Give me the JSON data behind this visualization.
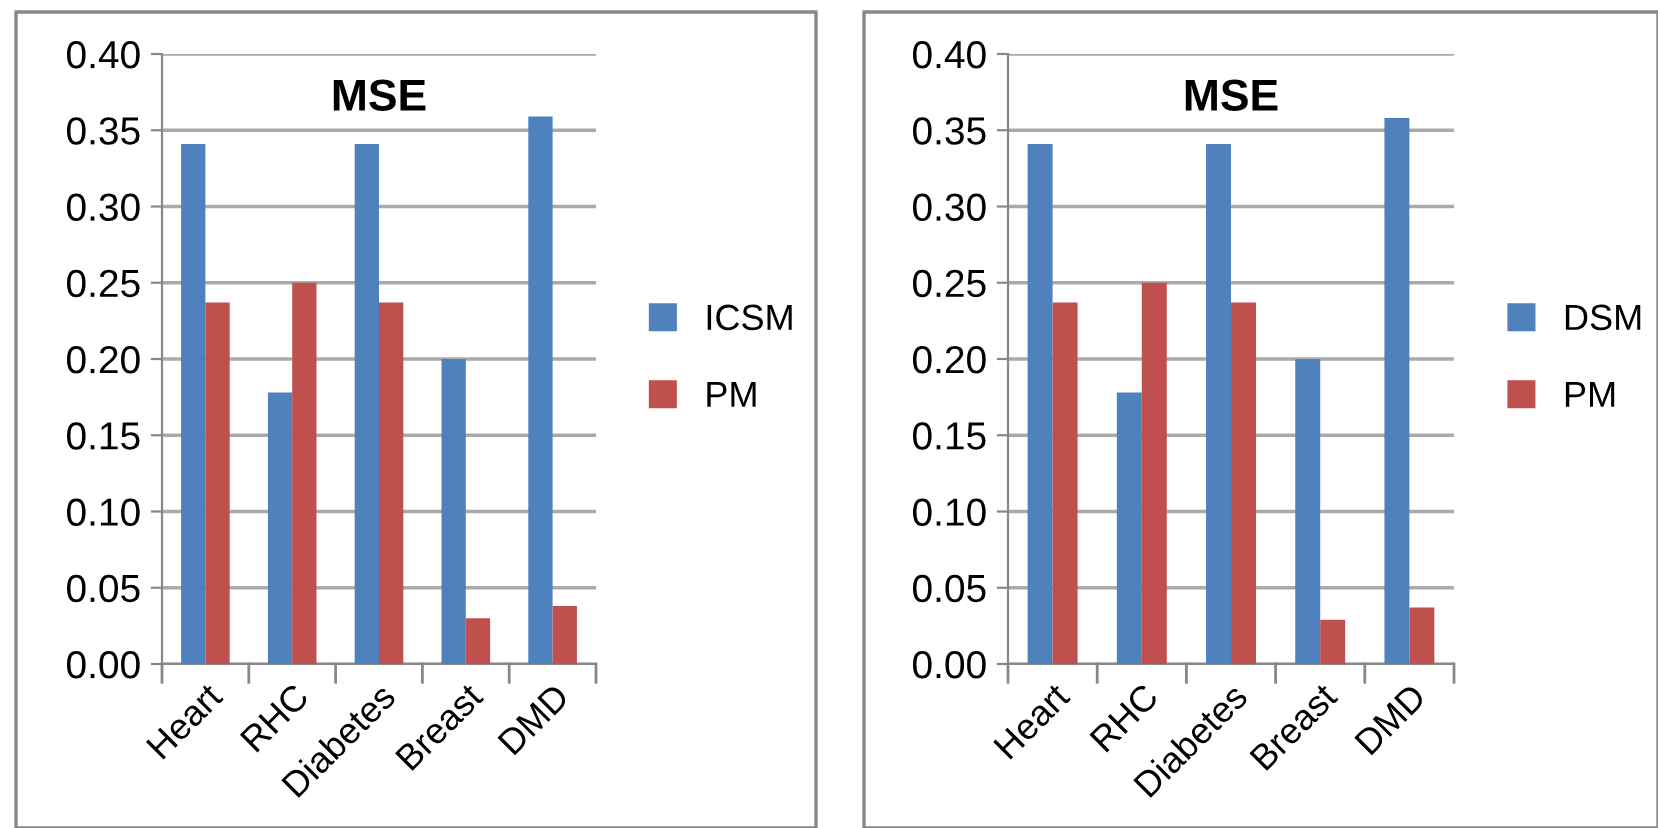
{
  "chart_data": [
    {
      "type": "bar",
      "title": "MSE",
      "categories": [
        "Heart",
        "RHC",
        "Diabetes",
        "Breast",
        "DMD"
      ],
      "series": [
        {
          "name": "ICSM",
          "color": "#4f81bd",
          "values": [
            0.341,
            0.178,
            0.341,
            0.2,
            0.359
          ]
        },
        {
          "name": "PM",
          "color": "#c0504d",
          "values": [
            0.237,
            0.25,
            0.237,
            0.03,
            0.038
          ]
        }
      ],
      "ylim": [
        0,
        0.4
      ],
      "yticks": [
        {
          "value": 0,
          "label": "0.00"
        },
        {
          "value": 0.05,
          "label": "0.05"
        },
        {
          "value": 0.1,
          "label": "0.10"
        },
        {
          "value": 0.15,
          "label": "0.15"
        },
        {
          "value": 0.2,
          "label": "0.20"
        },
        {
          "value": 0.25,
          "label": "0.25"
        },
        {
          "value": 0.3,
          "label": "0.30"
        },
        {
          "value": 0.35,
          "label": "0.35"
        },
        {
          "value": 0.4,
          "label": "0.40"
        }
      ],
      "grid": "y",
      "legend": "right"
    },
    {
      "type": "bar",
      "title": "MSE",
      "categories": [
        "Heart",
        "RHC",
        "Diabetes",
        "Breast",
        "DMD"
      ],
      "series": [
        {
          "name": "DSM",
          "color": "#4f81bd",
          "values": [
            0.341,
            0.178,
            0.341,
            0.2,
            0.358
          ]
        },
        {
          "name": "PM",
          "color": "#c0504d",
          "values": [
            0.237,
            0.25,
            0.237,
            0.029,
            0.037
          ]
        }
      ],
      "ylim": [
        0,
        0.4
      ],
      "yticks": [
        {
          "value": 0,
          "label": "0.00"
        },
        {
          "value": 0.05,
          "label": "0.05"
        },
        {
          "value": 0.1,
          "label": "0.10"
        },
        {
          "value": 0.15,
          "label": "0.15"
        },
        {
          "value": 0.2,
          "label": "0.20"
        },
        {
          "value": 0.25,
          "label": "0.25"
        },
        {
          "value": 0.3,
          "label": "0.30"
        },
        {
          "value": 0.35,
          "label": "0.35"
        },
        {
          "value": 0.4,
          "label": "0.40"
        }
      ],
      "grid": "y",
      "legend": "right"
    }
  ]
}
